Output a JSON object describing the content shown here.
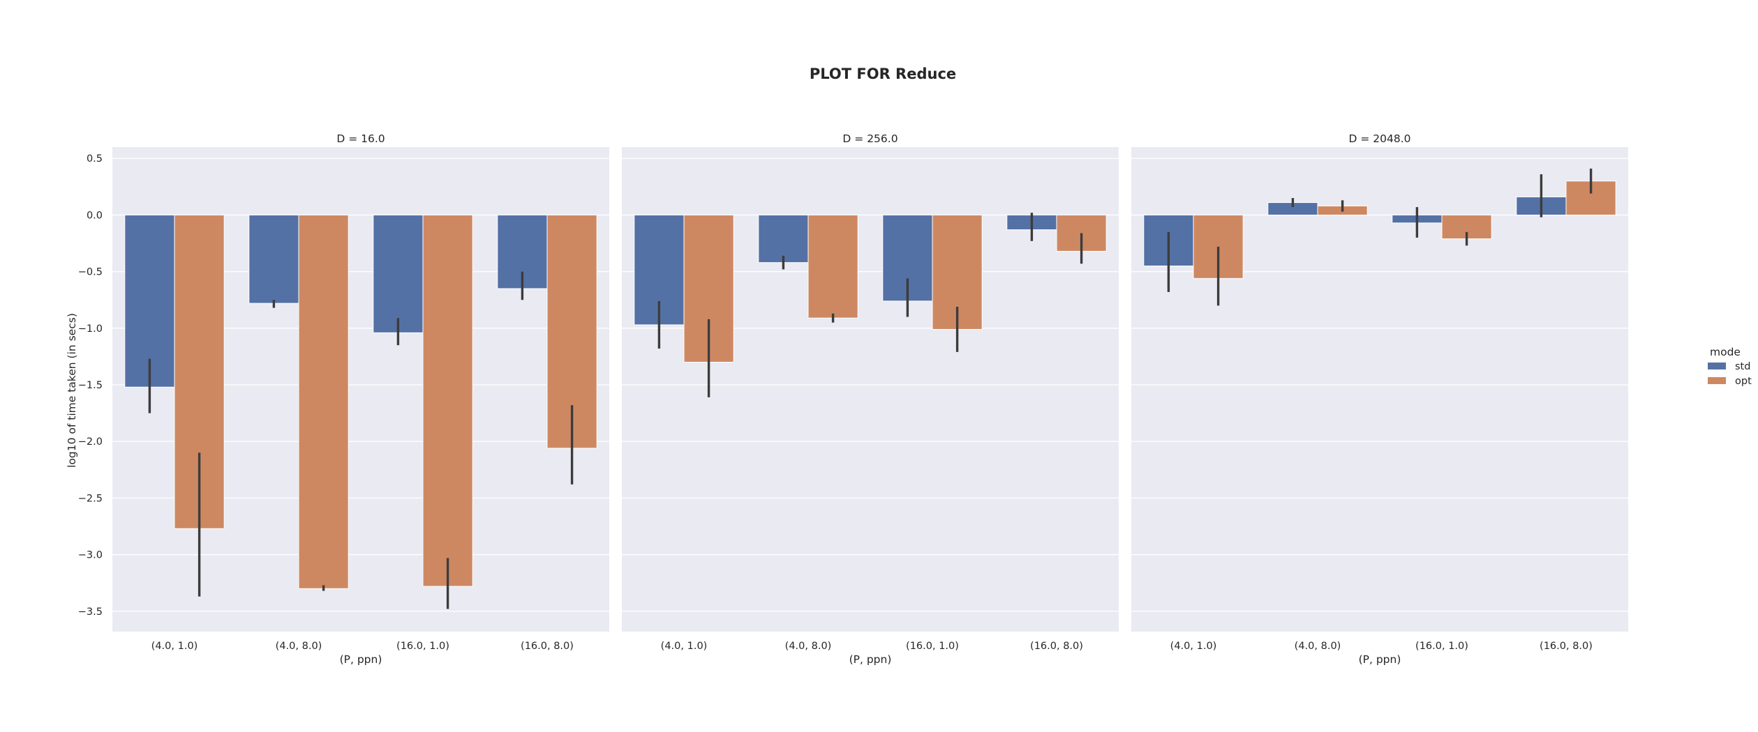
{
  "chart_data": {
    "type": "bar",
    "title": "PLOT FOR Reduce",
    "ylabel": "log10 of time taken (in secs)",
    "xlabel": "(P, ppn)",
    "categories": [
      "(4.0, 1.0)",
      "(4.0, 8.0)",
      "(16.0, 1.0)",
      "(16.0, 8.0)"
    ],
    "ylim": [
      -3.68,
      0.6
    ],
    "yticks": [
      0.5,
      0.0,
      -0.5,
      -1.0,
      -1.5,
      -2.0,
      -2.5,
      -3.0,
      -3.5
    ],
    "ytick_labels": [
      "0.5",
      "0.0",
      "−0.5",
      "−1.0",
      "−1.5",
      "−2.0",
      "−2.5",
      "−3.0",
      "−3.5"
    ],
    "grid": true,
    "legend": {
      "title": "mode",
      "placement": "right",
      "entries": [
        {
          "label": "std",
          "color": "#5471a6"
        },
        {
          "label": "opt",
          "color": "#cd8862"
        }
      ]
    },
    "facets": [
      {
        "title": "D = 16.0",
        "series": [
          {
            "name": "std",
            "color": "#5471a6",
            "values": [
              -1.52,
              -0.78,
              -1.04,
              -0.65
            ],
            "err_low": [
              -1.75,
              -0.82,
              -1.15,
              -0.75
            ],
            "err_high": [
              -1.27,
              -0.75,
              -0.91,
              -0.5
            ]
          },
          {
            "name": "opt",
            "color": "#cd8862",
            "values": [
              -2.77,
              -3.3,
              -3.28,
              -2.06
            ],
            "err_low": [
              -3.37,
              -3.32,
              -3.48,
              -2.38
            ],
            "err_high": [
              -2.1,
              -3.27,
              -3.03,
              -1.68
            ]
          }
        ]
      },
      {
        "title": "D = 256.0",
        "series": [
          {
            "name": "std",
            "color": "#5471a6",
            "values": [
              -0.97,
              -0.42,
              -0.76,
              -0.13
            ],
            "err_low": [
              -1.18,
              -0.48,
              -0.9,
              -0.23
            ],
            "err_high": [
              -0.76,
              -0.36,
              -0.56,
              0.02
            ]
          },
          {
            "name": "opt",
            "color": "#cd8862",
            "values": [
              -1.3,
              -0.91,
              -1.01,
              -0.32
            ],
            "err_low": [
              -1.61,
              -0.95,
              -1.21,
              -0.43
            ],
            "err_high": [
              -0.92,
              -0.87,
              -0.81,
              -0.16
            ]
          }
        ]
      },
      {
        "title": "D = 2048.0",
        "series": [
          {
            "name": "std",
            "color": "#5471a6",
            "values": [
              -0.45,
              0.11,
              -0.07,
              0.16
            ],
            "err_low": [
              -0.68,
              0.07,
              -0.2,
              -0.02
            ],
            "err_high": [
              -0.15,
              0.15,
              0.07,
              0.36
            ]
          },
          {
            "name": "opt",
            "color": "#cd8862",
            "values": [
              -0.56,
              0.08,
              -0.21,
              0.3
            ],
            "err_low": [
              -0.8,
              0.03,
              -0.27,
              0.19
            ],
            "err_high": [
              -0.28,
              0.13,
              -0.15,
              0.41
            ]
          }
        ]
      }
    ]
  }
}
